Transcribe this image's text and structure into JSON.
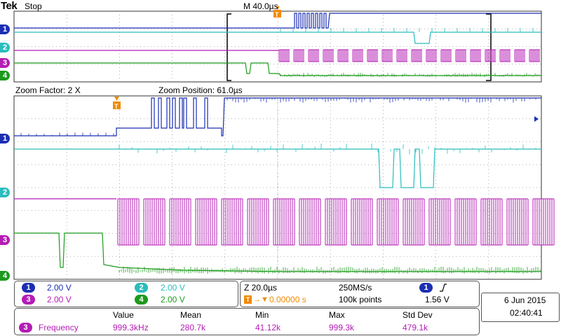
{
  "header": {
    "brand": "Tek",
    "run_state": "Stop",
    "timebase": "M 40.0µs"
  },
  "zoom_info": {
    "factor": "Zoom Factor: 2 X",
    "position": "Zoom Position: 61.0µs"
  },
  "colors": {
    "ch1": "#1c2fb4",
    "ch2": "#2bbcbc",
    "ch3": "#b41cb4",
    "ch4": "#1c9a1c",
    "trigger": "#f08a00",
    "grid": "#9a9a9a"
  },
  "channels": [
    {
      "num": "1",
      "scale": "2.00 V"
    },
    {
      "num": "2",
      "scale": "2.00 V"
    },
    {
      "num": "3",
      "scale": "2.00 V"
    },
    {
      "num": "4",
      "scale": "2.00 V"
    }
  ],
  "ch_markers": [
    "1",
    "2",
    "3",
    "4"
  ],
  "acq": {
    "zoom_scale": "Z 20.0µs",
    "sample_rate": "250MS/s",
    "trig_pos": "0.00000 s",
    "record": "100k points",
    "trig_ch": "1",
    "trig_level": "1.56 V",
    "trig_slope_icon": "rising-edge-icon"
  },
  "datetime": {
    "date": "6 Jun  2015",
    "time": "02:40:41"
  },
  "measure": {
    "headers": [
      "Value",
      "Mean",
      "Min",
      "Max",
      "Std Dev"
    ],
    "ch": "3",
    "label": "Frequency",
    "values": [
      "999.3kHz",
      "280.7k",
      "41.12k",
      "999.3k",
      "479.1k"
    ]
  }
}
